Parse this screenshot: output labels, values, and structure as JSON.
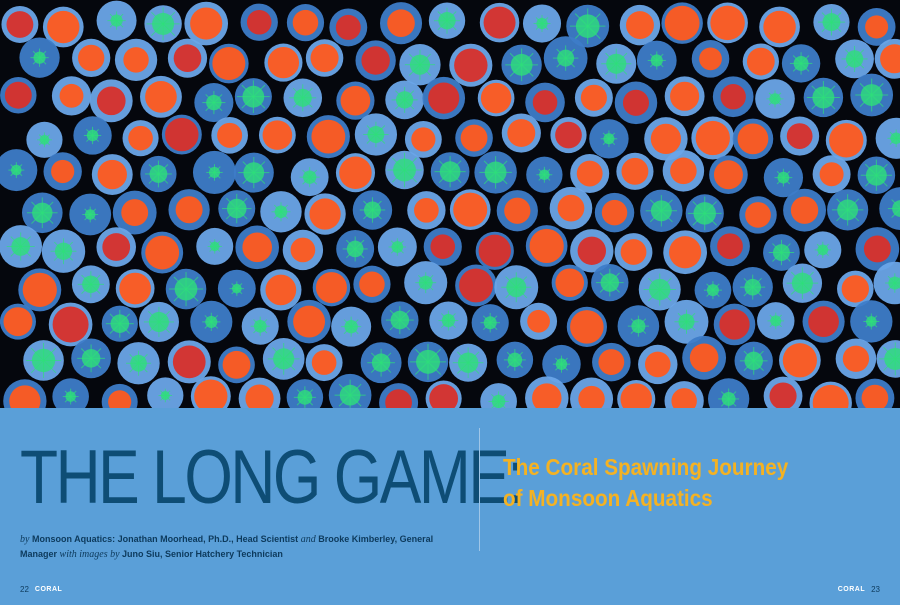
{
  "photo": {
    "description_icon": "coral-frags-photo",
    "colors": {
      "background": "#05070d",
      "plug": "#3d7cc8",
      "plug_light": "#6aa5e8",
      "orange": "#ff5a1e",
      "green": "#2ee07a",
      "red": "#d8302a"
    }
  },
  "article": {
    "headline": "THE LONG GAME:",
    "subtitle_line1": "The Coral Spawning Journey",
    "subtitle_line2": "of Monsoon Aquatics",
    "byline": {
      "by": "by",
      "authors_1": "Monsoon Aquatics: Jonathan Moorhead, Ph.D., Head Scientist",
      "and": "and",
      "authors_2": "Brooke Kimberley, General Manager",
      "with_images_by": "with images by",
      "photographer": "Juno Siu, Senior Hatchery Technician"
    }
  },
  "folio": {
    "left_page": "22",
    "right_page": "23",
    "magazine": "CORAL"
  },
  "colors": {
    "panel": "#5a9fd8",
    "headline": "#0e4d75",
    "subtitle": "#f4b223",
    "byline": "#0d3a5c"
  }
}
